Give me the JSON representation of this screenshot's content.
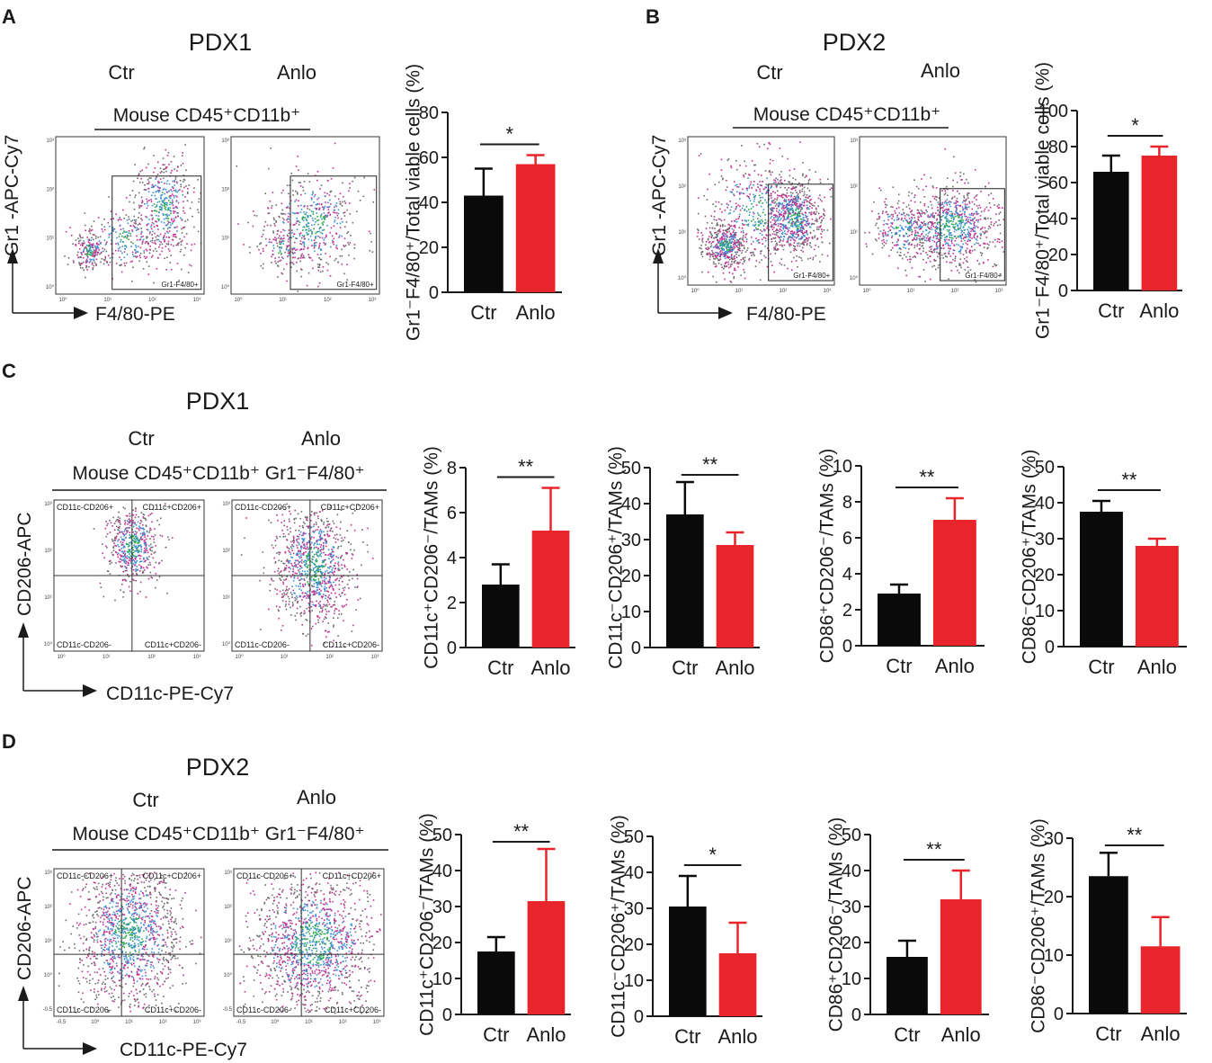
{
  "figure": {
    "panels": [
      {
        "letter": "A",
        "title": "PDX1",
        "groups": [
          "Ctr",
          "Anlo"
        ],
        "gate_title": "Mouse CD45⁺CD11b⁺",
        "y_axis": "Gr1 -APC-Cy7",
        "x_axis": "F4/80-PE",
        "gate_label": "Gr1-F4/80+",
        "flow_ticks": [
          "10⁰",
          "10¹",
          "10²",
          "10³"
        ]
      },
      {
        "letter": "B",
        "title": "PDX2",
        "groups": [
          "Ctr",
          "Anlo"
        ],
        "gate_title": "Mouse CD45⁺CD11b⁺",
        "y_axis": "Gr1 -APC-Cy7",
        "x_axis": "F4/80-PE",
        "gate_label": "Gr1-F4/80+",
        "flow_ticks": [
          "10⁰",
          "10¹",
          "10²",
          "10³"
        ]
      },
      {
        "letter": "C",
        "title": "PDX1",
        "groups": [
          "Ctr",
          "Anlo"
        ],
        "gate_title": "Mouse CD45⁺CD11b⁺ Gr1⁻F4/80⁺",
        "y_axis": "CD206-APC",
        "x_axis": "CD11c-PE-Cy7",
        "quadrants": [
          "CD11c-CD206+",
          "CD11c+CD206+",
          "CD11c-CD206-",
          "CD11c+CD206-"
        ],
        "flow_ticks": [
          "10⁰",
          "10¹",
          "10²",
          "10³"
        ]
      },
      {
        "letter": "D",
        "title": "PDX2",
        "groups": [
          "Ctr",
          "Anlo"
        ],
        "gate_title": "Mouse CD45⁺CD11b⁺ Gr1⁻F4/80⁺",
        "y_axis": "CD206-APC",
        "x_axis": "CD11c-PE-Cy7",
        "quadrants": [
          "CD11c-CD206+",
          "CD11c+CD206+",
          "CD11c-CD206-",
          "CD11c+CD206-"
        ],
        "flow_ticks": [
          "-0.5",
          "10⁰",
          "10¹",
          "10²",
          "10³"
        ]
      }
    ],
    "colors": {
      "ctr": "#0a0a0a",
      "anlo": "#e8252b",
      "text": "#1a1a1a",
      "dot_gray": "#6b6b6b",
      "dot_magenta": "#c2318f",
      "dot_blue": "#3a8fd6",
      "dot_green": "#2aa84a"
    }
  },
  "chart_data": [
    {
      "id": "A-bar",
      "type": "bar",
      "categories": [
        "Ctr",
        "Anlo"
      ],
      "values": [
        43,
        57
      ],
      "errors": [
        12,
        4
      ],
      "ylabel": "Gr1⁻F4/80⁺/Total viable cells (%)",
      "ylim": [
        0,
        80
      ],
      "ticks": [
        0,
        20,
        40,
        60,
        80
      ],
      "significance": "*"
    },
    {
      "id": "B-bar",
      "type": "bar",
      "categories": [
        "Ctr",
        "Anlo"
      ],
      "values": [
        66,
        75
      ],
      "errors": [
        9,
        5
      ],
      "ylabel": "Gr1⁻F4/80⁺/Total viable cells (%)",
      "ylim": [
        0,
        100
      ],
      "ticks": [
        0,
        20,
        40,
        60,
        80,
        100
      ],
      "significance": "*"
    },
    {
      "id": "C-bar1",
      "type": "bar",
      "categories": [
        "Ctr",
        "Anlo"
      ],
      "values": [
        2.8,
        5.2
      ],
      "errors": [
        0.9,
        1.9
      ],
      "ylabel": "CD11c⁺CD206⁻/TAMs (%)",
      "ylim": [
        0,
        8
      ],
      "ticks": [
        0,
        2,
        4,
        6,
        8
      ],
      "significance": "**"
    },
    {
      "id": "C-bar2",
      "type": "bar",
      "categories": [
        "Ctr",
        "Anlo"
      ],
      "values": [
        37,
        28.5
      ],
      "errors": [
        9,
        3.5
      ],
      "ylabel": "CD11c⁻CD206⁺/TAMs (%)",
      "ylim": [
        0,
        50
      ],
      "ticks": [
        0,
        10,
        20,
        30,
        40,
        50
      ],
      "significance": "**"
    },
    {
      "id": "C-bar3",
      "type": "bar",
      "categories": [
        "Ctr",
        "Anlo"
      ],
      "values": [
        2.9,
        7.0
      ],
      "errors": [
        0.5,
        1.2
      ],
      "ylabel": "CD86⁺CD206⁻/TAMs (%)",
      "ylim": [
        0,
        10
      ],
      "ticks": [
        0,
        2,
        4,
        6,
        8,
        10
      ],
      "significance": "**"
    },
    {
      "id": "C-bar4",
      "type": "bar",
      "categories": [
        "Ctr",
        "Anlo"
      ],
      "values": [
        37.5,
        28
      ],
      "errors": [
        3,
        2
      ],
      "ylabel": "CD86⁻CD206⁺/TAMs (%)",
      "ylim": [
        0,
        50
      ],
      "ticks": [
        0,
        10,
        20,
        30,
        40,
        50
      ],
      "significance": "**"
    },
    {
      "id": "D-bar1",
      "type": "bar",
      "categories": [
        "Ctr",
        "Anlo"
      ],
      "values": [
        17.5,
        31.5
      ],
      "errors": [
        4,
        14.5
      ],
      "ylabel": "CD11c⁺CD206⁻/TAMs (%)",
      "ylim": [
        0,
        50
      ],
      "ticks": [
        0,
        10,
        20,
        30,
        40,
        50
      ],
      "significance": "**"
    },
    {
      "id": "D-bar2",
      "type": "bar",
      "categories": [
        "Ctr",
        "Anlo"
      ],
      "values": [
        30.5,
        17.5
      ],
      "errors": [
        8.5,
        8.5
      ],
      "ylabel": "CD11c⁻CD206⁺/TAMs (%)",
      "ylim": [
        0,
        50
      ],
      "ticks": [
        0,
        10,
        20,
        30,
        40,
        50
      ],
      "significance": "*"
    },
    {
      "id": "D-bar3",
      "type": "bar",
      "categories": [
        "Ctr",
        "Anlo"
      ],
      "values": [
        16,
        32
      ],
      "errors": [
        4.5,
        8
      ],
      "ylabel": "CD86⁺CD206⁻/TAMs (%)",
      "ylim": [
        0,
        50
      ],
      "ticks": [
        0,
        10,
        20,
        30,
        40,
        50
      ],
      "significance": "**"
    },
    {
      "id": "D-bar4",
      "type": "bar",
      "categories": [
        "Ctr",
        "Anlo"
      ],
      "values": [
        23.5,
        11.5
      ],
      "errors": [
        4,
        5
      ],
      "ylabel": "CD86⁻CD206⁺/TAMs (%)",
      "ylim": [
        0,
        30
      ],
      "ticks": [
        0,
        10,
        20,
        30
      ],
      "significance": "**"
    }
  ]
}
